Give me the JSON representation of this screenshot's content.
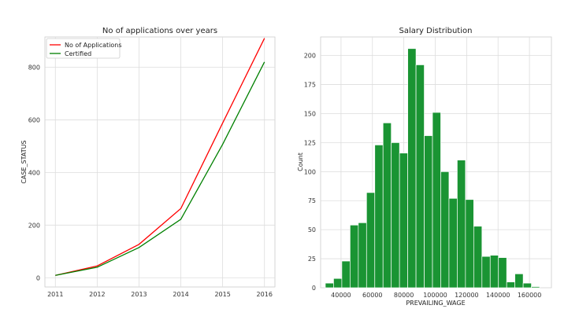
{
  "chart_data": [
    {
      "type": "line",
      "title": "No of applications over years",
      "xlabel": "",
      "ylabel": "CASE_STATUS",
      "x": [
        2011,
        2012,
        2013,
        2014,
        2015,
        2016
      ],
      "xlim": [
        2010.75,
        2016.25
      ],
      "ylim": [
        -35,
        915
      ],
      "yticks": [
        0,
        200,
        400,
        600,
        800
      ],
      "grid": true,
      "legend": "top-left",
      "series": [
        {
          "name": "No of Applications",
          "color": "#ff0000",
          "values": [
            9,
            45,
            127,
            263,
            588,
            910
          ]
        },
        {
          "name": "Certified",
          "color": "#008000",
          "values": [
            9,
            40,
            115,
            222,
            507,
            820
          ]
        }
      ]
    },
    {
      "type": "bar",
      "title": "Salary Distribution",
      "xlabel": "PREVAILING_WAGE",
      "ylabel": "Count",
      "color": "#1a9433",
      "bin_start": 30000,
      "bin_width": 5250,
      "values": [
        4,
        8,
        23,
        54,
        56,
        82,
        123,
        142,
        125,
        116,
        206,
        192,
        131,
        151,
        100,
        77,
        110,
        76,
        53,
        27,
        28,
        26,
        5,
        12,
        4,
        1
      ],
      "xlim": [
        27000,
        174000
      ],
      "ylim": [
        0,
        216
      ],
      "xticks": [
        40000,
        60000,
        80000,
        100000,
        120000,
        140000,
        160000
      ],
      "yticks": [
        0,
        25,
        50,
        75,
        100,
        125,
        150,
        175,
        200
      ],
      "grid": true
    }
  ]
}
